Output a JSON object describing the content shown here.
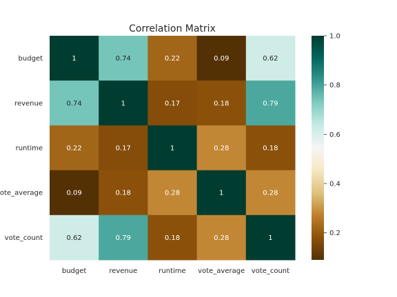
{
  "chart_data": {
    "type": "heatmap",
    "title": "Correlation Matrix",
    "x_labels": [
      "budget",
      "revenue",
      "runtime",
      "vote_average",
      "vote_count"
    ],
    "y_labels": [
      "budget",
      "revenue",
      "runtime",
      "vote_average",
      "vote_count"
    ],
    "values": [
      [
        1,
        0.74,
        0.22,
        0.09,
        0.62
      ],
      [
        0.74,
        1,
        0.17,
        0.18,
        0.79
      ],
      [
        0.22,
        0.17,
        1,
        0.28,
        0.18
      ],
      [
        0.09,
        0.18,
        0.28,
        1,
        0.28
      ],
      [
        0.62,
        0.79,
        0.18,
        0.28,
        1
      ]
    ],
    "annotations": [
      [
        "1",
        "0.74",
        "0.22",
        "0.09",
        "0.62"
      ],
      [
        "0.74",
        "1",
        "0.17",
        "0.18",
        "0.79"
      ],
      [
        "0.22",
        "0.17",
        "1",
        "0.28",
        "0.18"
      ],
      [
        "0.09",
        "0.18",
        "0.28",
        "1",
        "0.28"
      ],
      [
        "0.62",
        "0.79",
        "0.18",
        "0.28",
        "1"
      ]
    ],
    "colormap": "BrBG",
    "vmin": 0.09,
    "vmax": 1.0,
    "colorbar_ticks": [
      0.2,
      0.4,
      0.6,
      0.8,
      1.0
    ],
    "colorbar_tick_labels": [
      "0.2",
      "0.4",
      "0.6",
      "0.8",
      "1.0"
    ],
    "colorbar_position": "right",
    "grid": false
  }
}
